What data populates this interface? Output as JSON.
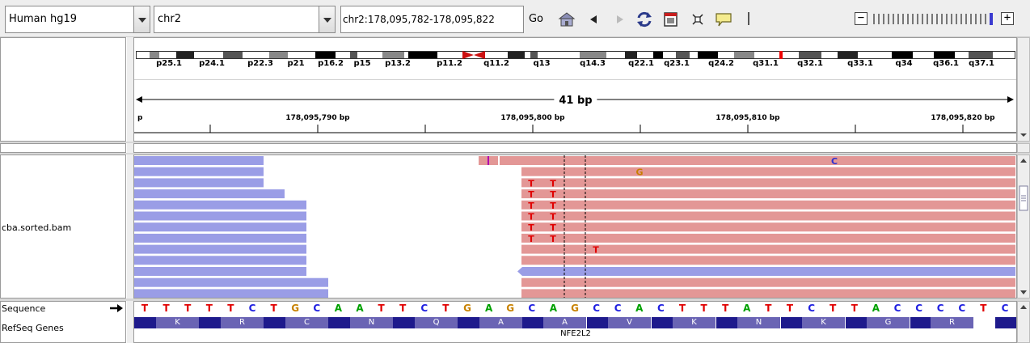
{
  "toolbar": {
    "genome": "Human hg19",
    "chromosome": "chr2",
    "locus": "chr2:178,095,782-178,095,822",
    "go_label": "Go"
  },
  "ideogram": {
    "bands": [
      "p25.1",
      "p24.1",
      "p22.3",
      "p21",
      "p16.2",
      "p15",
      "p13.2",
      "p11.2",
      "q11.2",
      "q13",
      "q14.3",
      "q22.1",
      "q23.1",
      "q24.2",
      "q31.1",
      "q32.1",
      "q33.1",
      "q34",
      "q36.1",
      "q37.1"
    ]
  },
  "ruler": {
    "span": "41 bp",
    "edge_label": "p",
    "ticks": [
      "178,095,790 bp",
      "178,095,800 bp",
      "178,095,810 bp",
      "178,095,820 bp"
    ]
  },
  "tracks": {
    "alignment": "cba.sorted.bam",
    "sequence": "Sequence",
    "genes": "RefSeq Genes"
  },
  "mismatch_letters": {
    "c": "C",
    "g": "G",
    "t": "T",
    "i": "I"
  },
  "sequence": [
    "T",
    "T",
    "T",
    "T",
    "T",
    "C",
    "T",
    "G",
    "C",
    "A",
    "A",
    "T",
    "T",
    "C",
    "T",
    "G",
    "A",
    "G",
    "C",
    "A",
    "G",
    "C",
    "C",
    "A",
    "C",
    "T",
    "T",
    "T",
    "A",
    "T",
    "T",
    "C",
    "T",
    "T",
    "A",
    "C",
    "C",
    "C",
    "C",
    "T",
    "C"
  ],
  "amino_acids": [
    "K",
    "R",
    "C",
    "N",
    "Q",
    "A",
    "A",
    "V",
    "K",
    "N",
    "K",
    "G",
    "R"
  ],
  "gene_name": "NFE2L2",
  "colors": {
    "forward_read": "#e39796",
    "reverse_read": "#9a9de6",
    "mismatch_t": "#e00000",
    "mismatch_g": "#c87d00",
    "mismatch_c": "#2e2ed0",
    "seq_A": "#00a000",
    "seq_C": "#2020e0",
    "seq_G": "#c88200",
    "seq_T": "#e00000",
    "gene_dark": "#1e1a8c",
    "gene_light": "#6a64b4",
    "centromere": "#cc1111"
  }
}
